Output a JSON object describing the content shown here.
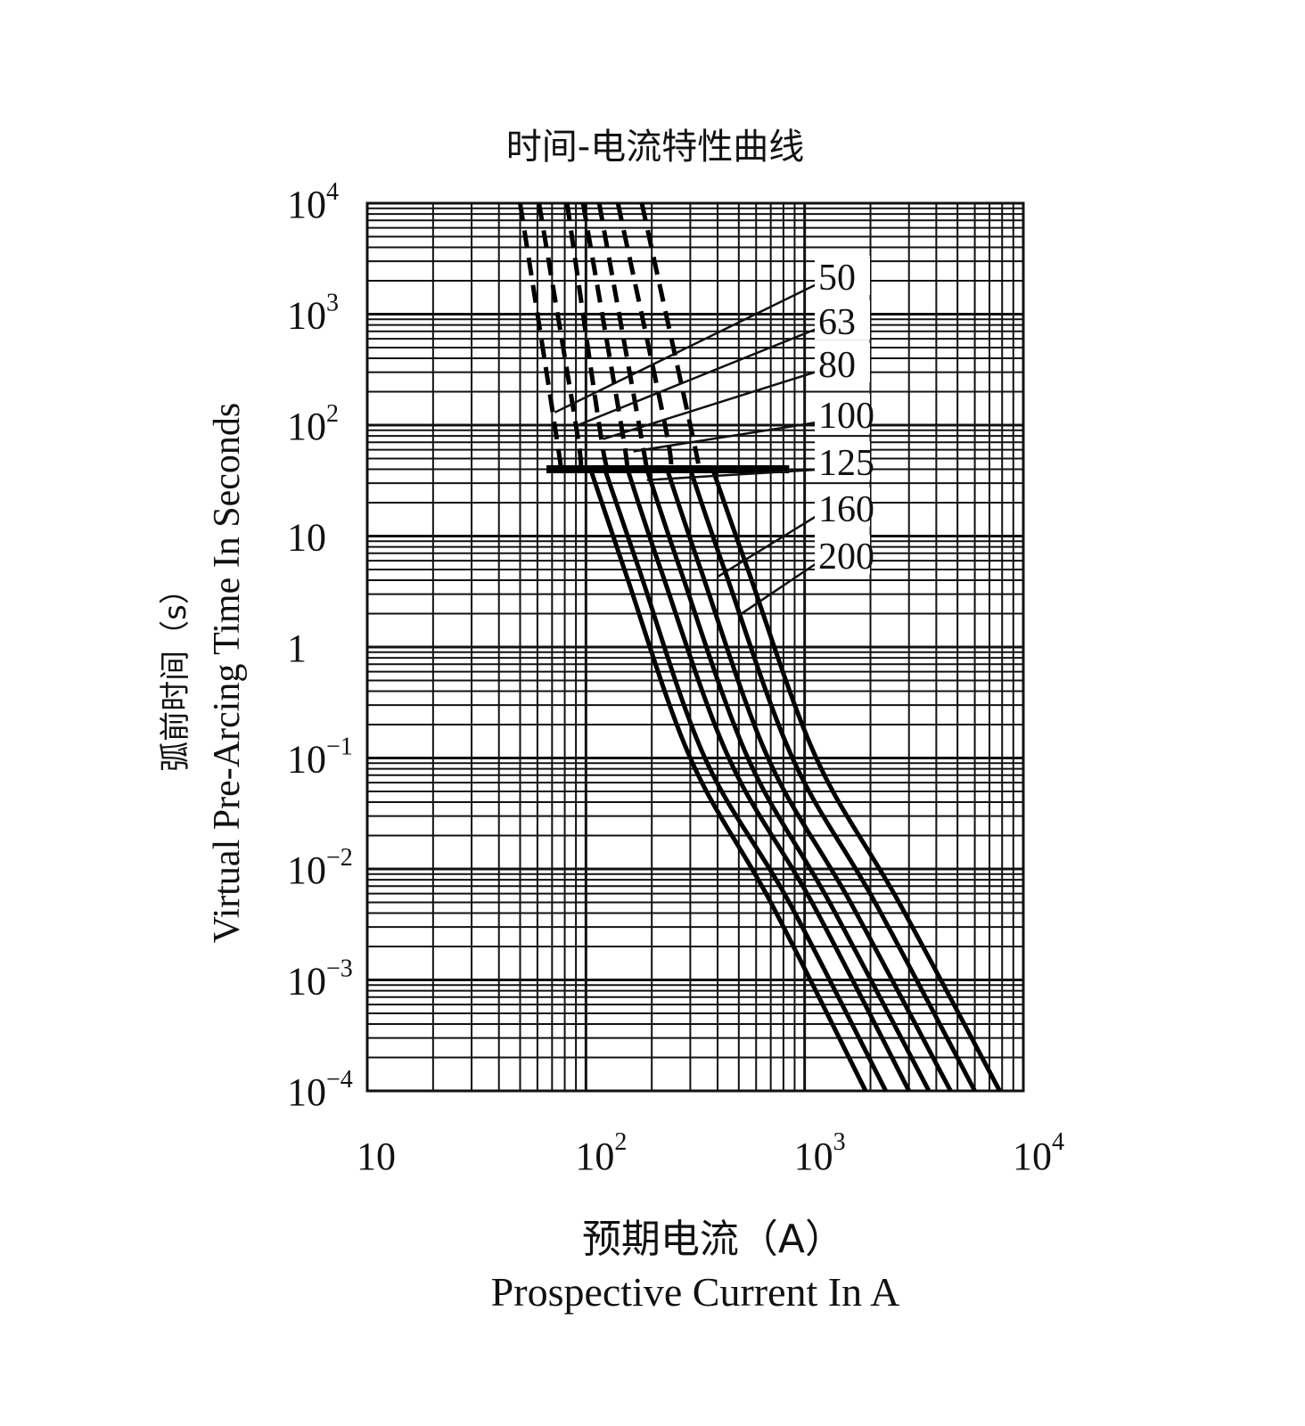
{
  "chart_data": {
    "type": "line",
    "title": "时间-电流特性曲线",
    "ylabel_cn": "弧前时间（s）",
    "ylabel": "Virtual Pre-Arcing Time In Seconds",
    "xlabel_cn": "预期电流（A）",
    "xlabel": "Prospective Current In A",
    "x_scale": "log",
    "y_scale": "log",
    "xlim": [
      10,
      10000
    ],
    "ylim": [
      0.0001,
      10000
    ],
    "x_ticks": [
      {
        "value": 10,
        "base": "10",
        "exp": ""
      },
      {
        "value": 100,
        "base": "10",
        "exp": "2"
      },
      {
        "value": 1000,
        "base": "10",
        "exp": "3"
      },
      {
        "value": 10000,
        "base": "10",
        "exp": "4"
      }
    ],
    "y_ticks": [
      {
        "value": 10000,
        "base": "10",
        "exp": "4"
      },
      {
        "value": 1000,
        "base": "10",
        "exp": "3"
      },
      {
        "value": 100,
        "base": "10",
        "exp": "2"
      },
      {
        "value": 10,
        "base": "10",
        "exp": ""
      },
      {
        "value": 1,
        "base": "1",
        "exp": ""
      },
      {
        "value": 0.1,
        "base": "10",
        "exp": "−1"
      },
      {
        "value": 0.01,
        "base": "10",
        "exp": "−2"
      },
      {
        "value": 0.001,
        "base": "10",
        "exp": "−3"
      },
      {
        "value": 0.0001,
        "base": "10",
        "exp": "−4"
      }
    ],
    "grid": true,
    "threshold_time": 40,
    "threshold_current_range": [
      66,
      850
    ],
    "series": [
      {
        "name": "50",
        "dashed_upper": [
          [
            50,
            10000
          ],
          [
            72,
            100
          ],
          [
            77,
            40
          ]
        ],
        "solid_lower": [
          [
            105,
            40
          ],
          [
            150,
            5
          ],
          [
            300,
            0.1
          ],
          [
            700,
            0.005
          ],
          [
            1900,
            0.0001
          ]
        ]
      },
      {
        "name": "63",
        "dashed_upper": [
          [
            61,
            10000
          ],
          [
            90,
            100
          ],
          [
            95,
            40
          ]
        ],
        "solid_lower": [
          [
            122,
            40
          ],
          [
            175,
            5
          ],
          [
            350,
            0.1
          ],
          [
            850,
            0.005
          ],
          [
            2350,
            0.0001
          ]
        ]
      },
      {
        "name": "80",
        "dashed_upper": [
          [
            82,
            10000
          ],
          [
            115,
            100
          ],
          [
            125,
            40
          ]
        ],
        "solid_lower": [
          [
            155,
            40
          ],
          [
            220,
            5
          ],
          [
            450,
            0.1
          ],
          [
            1080,
            0.005
          ],
          [
            3000,
            0.0001
          ]
        ]
      },
      {
        "name": "100",
        "dashed_upper": [
          [
            97,
            10000
          ],
          [
            145,
            100
          ],
          [
            155,
            40
          ]
        ],
        "solid_lower": [
          [
            190,
            40
          ],
          [
            270,
            5
          ],
          [
            550,
            0.1
          ],
          [
            1300,
            0.005
          ],
          [
            3700,
            0.0001
          ]
        ]
      },
      {
        "name": "125",
        "dashed_upper": [
          [
            115,
            10000
          ],
          [
            175,
            100
          ],
          [
            190,
            40
          ]
        ],
        "solid_lower": [
          [
            235,
            40
          ],
          [
            335,
            5
          ],
          [
            680,
            0.1
          ],
          [
            1620,
            0.005
          ],
          [
            4650,
            0.0001
          ]
        ]
      },
      {
        "name": "160",
        "dashed_upper": [
          [
            140,
            10000
          ],
          [
            230,
            100
          ],
          [
            245,
            40
          ]
        ],
        "solid_lower": [
          [
            300,
            40
          ],
          [
            430,
            5
          ],
          [
            880,
            0.1
          ],
          [
            2100,
            0.005
          ],
          [
            6000,
            0.0001
          ]
        ]
      },
      {
        "name": "200",
        "dashed_upper": [
          [
            180,
            10000
          ],
          [
            300,
            100
          ],
          [
            330,
            40
          ]
        ],
        "solid_lower": [
          [
            380,
            40
          ],
          [
            550,
            5
          ],
          [
            1130,
            0.1
          ],
          [
            2700,
            0.005
          ],
          [
            7800,
            0.0001
          ]
        ]
      }
    ],
    "rating_leaders": [
      {
        "label": "50",
        "to": [
          72,
          130
        ]
      },
      {
        "label": "63",
        "to": [
          92,
          100
        ]
      },
      {
        "label": "80",
        "to": [
          120,
          75
        ]
      },
      {
        "label": "100",
        "to": [
          165,
          58
        ]
      },
      {
        "label": "125",
        "to": [
          190,
          32
        ]
      },
      {
        "label": "160",
        "to": [
          400,
          4.3
        ]
      },
      {
        "label": "200",
        "to": [
          495,
          1.9
        ]
      }
    ]
  }
}
